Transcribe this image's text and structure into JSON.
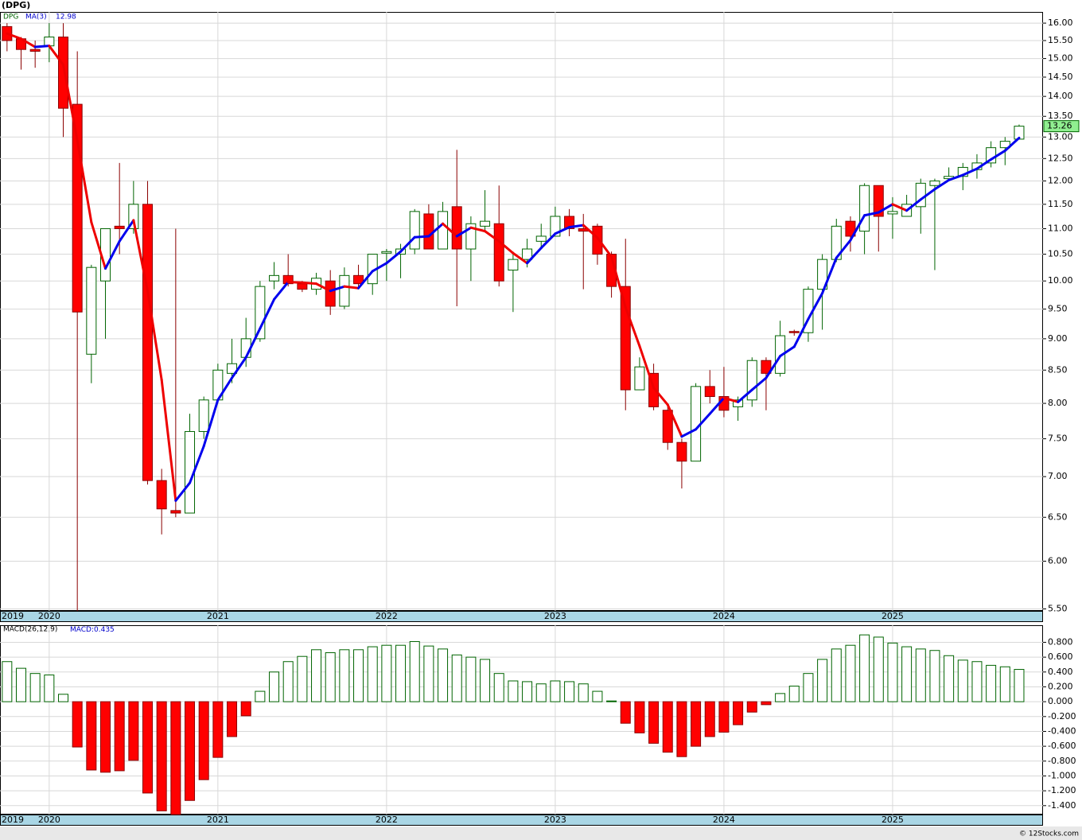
{
  "chart_data": [
    {
      "type": "candlestick",
      "title": "(DPG)",
      "name": "DPG",
      "log_scale": true,
      "grid": true,
      "up_fill": "#ffffff",
      "up_stroke": "#006400",
      "down_fill": "#ff0000",
      "down_stroke": "#8b0000",
      "label_fill": "#90ee90",
      "xlim": [
        -0.5,
        73.7
      ],
      "xticks": [
        {
          "value": -0.5,
          "label": "2019"
        },
        {
          "value": 3,
          "label": "2020"
        },
        {
          "value": 15,
          "label": "2021"
        },
        {
          "value": 27,
          "label": "2022"
        },
        {
          "value": 39,
          "label": "2023"
        },
        {
          "value": 51,
          "label": "2024"
        },
        {
          "value": 63,
          "label": "2025"
        }
      ],
      "ylim": [
        5.48,
        16.33
      ],
      "yticks": [
        {
          "value": 5.5,
          "label": "5.50"
        },
        {
          "value": 6,
          "label": "6.00"
        },
        {
          "value": 6.5,
          "label": "6.50"
        },
        {
          "value": 7,
          "label": "7.00"
        },
        {
          "value": 7.5,
          "label": "7.50"
        },
        {
          "value": 8,
          "label": "8.00"
        },
        {
          "value": 8.5,
          "label": "8.50"
        },
        {
          "value": 9,
          "label": "9.00"
        },
        {
          "value": 9.5,
          "label": "9.50"
        },
        {
          "value": 10,
          "label": "10.00"
        },
        {
          "value": 10.5,
          "label": "10.50"
        },
        {
          "value": 11,
          "label": "11.00"
        },
        {
          "value": 11.5,
          "label": "11.50"
        },
        {
          "value": 12,
          "label": "12.00"
        },
        {
          "value": 12.5,
          "label": "12.50"
        },
        {
          "value": 13,
          "label": "13.00"
        },
        {
          "value": 13.5,
          "label": "13.50"
        },
        {
          "value": 14,
          "label": "14.00"
        },
        {
          "value": 14.5,
          "label": "14.50"
        },
        {
          "value": 15,
          "label": "15.00"
        },
        {
          "value": 15.5,
          "label": "15.50"
        },
        {
          "value": 16,
          "label": "16.00"
        }
      ],
      "open": [
        15.9,
        15.55,
        15.25,
        15.35,
        15.6,
        13.8,
        8.75,
        10.0,
        11.05,
        11.0,
        11.5,
        6.95,
        6.58,
        6.55,
        7.6,
        8.05,
        8.45,
        8.7,
        9.0,
        10.0,
        10.1,
        9.95,
        9.85,
        10.0,
        9.55,
        10.1,
        9.95,
        10.52,
        10.5,
        10.6,
        11.3,
        10.6,
        11.45,
        10.6,
        11.05,
        11.1,
        10.2,
        10.4,
        10.75,
        10.85,
        11.25,
        11.0,
        11.05,
        10.5,
        9.9,
        8.2,
        8.45,
        7.9,
        7.45,
        7.2,
        8.25,
        8.1,
        7.95,
        8.05,
        8.65,
        8.45,
        9.12,
        9.1,
        9.85,
        10.4,
        11.15,
        10.95,
        11.9,
        11.3,
        11.25,
        11.45,
        11.9,
        12.05,
        12.1,
        12.25,
        12.4,
        12.75,
        12.95
      ],
      "high": [
        16.0,
        15.6,
        15.5,
        16.0,
        16.0,
        15.2,
        10.3,
        11.0,
        12.4,
        12.0,
        12.0,
        7.1,
        11.0,
        7.85,
        8.1,
        8.6,
        9.0,
        9.35,
        10.0,
        10.35,
        10.5,
        10.0,
        10.15,
        10.2,
        10.25,
        10.3,
        10.5,
        10.6,
        10.7,
        11.4,
        11.5,
        11.55,
        12.7,
        11.25,
        11.8,
        11.9,
        10.55,
        10.8,
        11.1,
        11.45,
        11.4,
        11.3,
        11.1,
        10.55,
        10.8,
        8.7,
        8.6,
        8.0,
        7.5,
        8.3,
        8.5,
        8.55,
        8.1,
        8.7,
        8.7,
        9.3,
        9.15,
        9.9,
        10.5,
        11.2,
        11.25,
        11.95,
        11.9,
        11.65,
        11.7,
        12.05,
        12.05,
        12.3,
        12.4,
        12.6,
        12.9,
        13.0,
        13.3
      ],
      "low": [
        15.2,
        14.7,
        14.75,
        14.9,
        13.0,
        5.48,
        8.3,
        9.0,
        10.5,
        10.9,
        6.9,
        6.3,
        6.5,
        6.55,
        7.5,
        8.0,
        8.3,
        8.55,
        8.95,
        9.85,
        9.9,
        9.8,
        9.75,
        9.4,
        9.5,
        9.85,
        9.75,
        10.0,
        10.05,
        10.5,
        10.6,
        10.6,
        9.55,
        10.0,
        10.95,
        9.9,
        9.45,
        10.25,
        10.6,
        10.85,
        10.85,
        9.85,
        10.3,
        9.7,
        7.9,
        8.2,
        7.9,
        7.35,
        6.85,
        7.2,
        8.0,
        7.8,
        7.75,
        7.95,
        7.9,
        8.4,
        9.05,
        8.95,
        9.15,
        10.35,
        10.55,
        10.5,
        10.55,
        10.8,
        11.25,
        10.9,
        10.2,
        12.0,
        11.8,
        12.05,
        12.3,
        12.35,
        12.95
      ],
      "close": [
        15.5,
        15.25,
        15.2,
        15.6,
        13.7,
        9.45,
        10.25,
        11.0,
        11.0,
        11.5,
        6.95,
        6.6,
        6.55,
        7.6,
        8.05,
        8.5,
        8.6,
        9.0,
        9.9,
        10.1,
        9.95,
        9.85,
        10.05,
        9.55,
        10.1,
        9.95,
        10.5,
        10.55,
        10.6,
        11.35,
        10.6,
        11.35,
        10.6,
        11.1,
        11.15,
        10.0,
        10.4,
        10.6,
        10.85,
        11.25,
        11.0,
        10.95,
        10.5,
        9.9,
        8.2,
        8.55,
        7.95,
        7.45,
        7.2,
        8.25,
        8.1,
        7.9,
        8.05,
        8.65,
        8.45,
        9.05,
        9.1,
        9.85,
        10.4,
        11.05,
        10.85,
        11.9,
        11.25,
        11.35,
        11.5,
        11.95,
        12.0,
        12.1,
        12.3,
        12.4,
        12.75,
        12.9,
        13.26
      ],
      "ma": {
        "name": "MA(3)",
        "rise_color": "#0000ee",
        "fall_color": "#ee0000",
        "values": [
          15.7,
          15.55,
          15.32,
          15.35,
          14.83,
          12.92,
          11.13,
          10.23,
          10.75,
          11.17,
          9.82,
          8.35,
          6.7,
          6.92,
          7.4,
          8.05,
          8.38,
          8.7,
          9.17,
          9.67,
          9.98,
          9.97,
          9.95,
          9.82,
          9.9,
          9.87,
          10.18,
          10.33,
          10.55,
          10.83,
          10.85,
          11.1,
          10.85,
          11.02,
          10.95,
          10.75,
          10.52,
          10.33,
          10.62,
          10.9,
          11.03,
          11.07,
          10.82,
          10.45,
          9.53,
          8.88,
          8.23,
          7.98,
          7.53,
          7.63,
          7.85,
          8.08,
          8.02,
          8.2,
          8.38,
          8.72,
          8.87,
          9.33,
          9.78,
          10.43,
          10.77,
          11.27,
          11.33,
          11.5,
          11.37,
          11.6,
          11.82,
          12.02,
          12.13,
          12.27,
          12.48,
          12.68,
          12.98
        ]
      }
    },
    {
      "type": "bar",
      "name": "MACD(26,12,9)",
      "value_prefix": "MACD:",
      "grid": true,
      "pos_fill": "#ffffff",
      "pos_stroke": "#006400",
      "neg_fill": "#ff0000",
      "neg_stroke": "#8b0000",
      "ylim": [
        -1.52,
        1.03
      ],
      "yticks": [
        {
          "value": 0.8,
          "label": "0.800"
        },
        {
          "value": 0.6,
          "label": "0.600"
        },
        {
          "value": 0.4,
          "label": "0.400"
        },
        {
          "value": 0.2,
          "label": "0.200"
        },
        {
          "value": 0,
          "label": "0.000"
        },
        {
          "value": -0.2,
          "label": "-0.200"
        },
        {
          "value": -0.4,
          "label": "-0.400"
        },
        {
          "value": -0.6,
          "label": "-0.600"
        },
        {
          "value": -0.8,
          "label": "-0.800"
        },
        {
          "value": -1.0,
          "label": "-1.000"
        },
        {
          "value": -1.2,
          "label": "-1.200"
        },
        {
          "value": -1.4,
          "label": "-1.400"
        }
      ],
      "values": [
        0.54,
        0.45,
        0.38,
        0.36,
        0.1,
        -0.61,
        -0.92,
        -0.95,
        -0.93,
        -0.79,
        -1.23,
        -1.47,
        -1.52,
        -1.33,
        -1.05,
        -0.75,
        -0.47,
        -0.19,
        0.14,
        0.4,
        0.54,
        0.61,
        0.7,
        0.66,
        0.7,
        0.7,
        0.74,
        0.76,
        0.76,
        0.81,
        0.75,
        0.71,
        0.63,
        0.6,
        0.57,
        0.38,
        0.28,
        0.27,
        0.24,
        0.28,
        0.27,
        0.24,
        0.14,
        0.01,
        -0.29,
        -0.42,
        -0.56,
        -0.68,
        -0.74,
        -0.6,
        -0.47,
        -0.41,
        -0.31,
        -0.14,
        -0.04,
        0.11,
        0.21,
        0.38,
        0.57,
        0.71,
        0.76,
        0.9,
        0.87,
        0.79,
        0.74,
        0.71,
        0.69,
        0.62,
        0.56,
        0.54,
        0.49,
        0.47,
        0.435
      ]
    }
  ],
  "footer": "© 12Stocks.com"
}
